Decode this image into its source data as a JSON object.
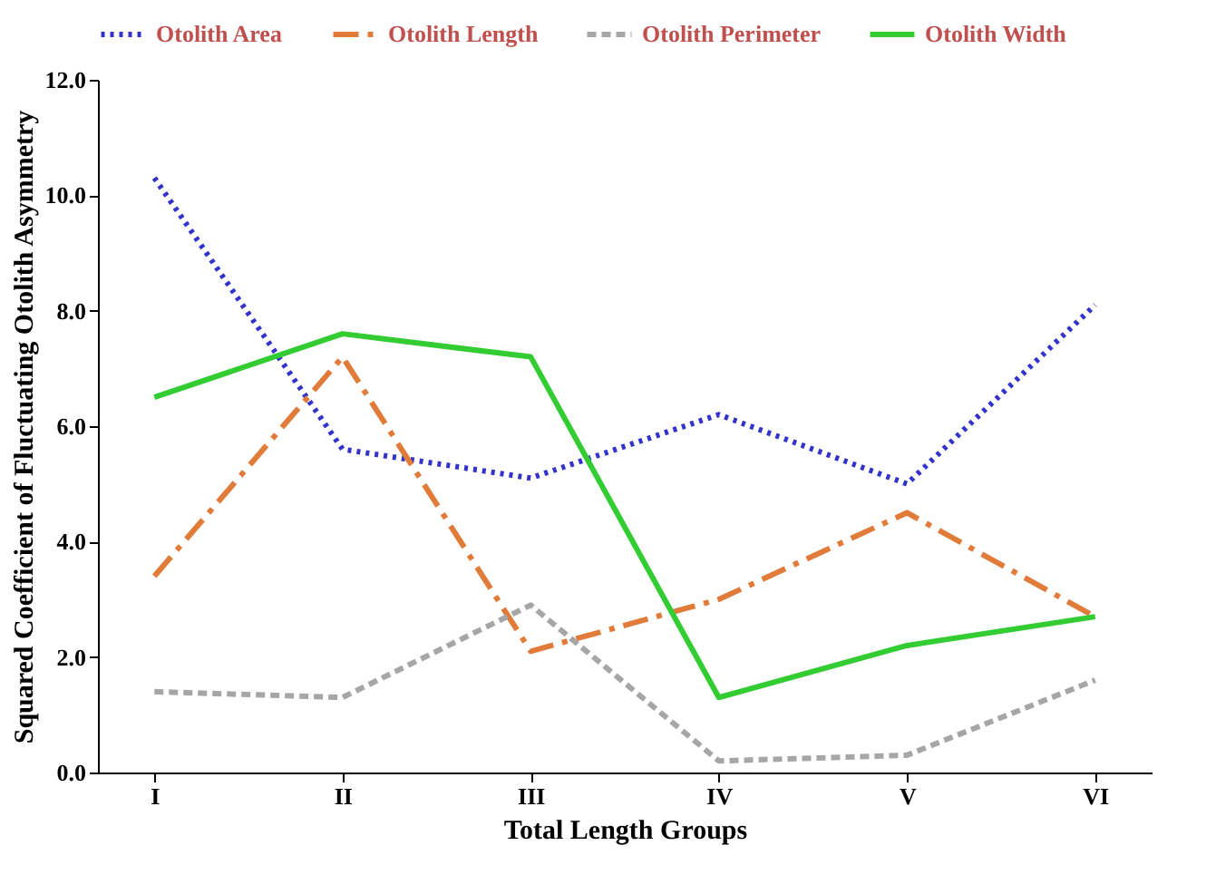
{
  "chart_data": {
    "type": "line",
    "xlabel": "Total Length Groups",
    "ylabel": "Squared Coefficient of Fluctuating Otolith Asymmetry",
    "categories": [
      "I",
      "II",
      "III",
      "IV",
      "V",
      "VI"
    ],
    "series": [
      {
        "name": "Otolith Area",
        "color": "#3333cc",
        "line_style": "dotted",
        "values": [
          10.3,
          5.6,
          5.1,
          6.2,
          5.0,
          8.1
        ]
      },
      {
        "name": "Otolith Length",
        "color": "#e07b39",
        "line_style": "dashdot",
        "values": [
          3.4,
          7.2,
          2.1,
          3.0,
          4.5,
          2.7
        ]
      },
      {
        "name": "Otolith Perimeter",
        "color": "#a6a6a6",
        "line_style": "dashed",
        "values": [
          1.4,
          1.3,
          2.9,
          0.2,
          0.3,
          1.6
        ]
      },
      {
        "name": "Otolith Width",
        "color": "#33cc33",
        "line_style": "solid",
        "values": [
          6.5,
          7.6,
          7.2,
          1.3,
          2.2,
          2.7
        ]
      }
    ],
    "ylim": [
      0,
      12
    ],
    "yticks": [
      {
        "value": 0,
        "label": "0.0"
      },
      {
        "value": 2,
        "label": "2.0"
      },
      {
        "value": 4,
        "label": "4.0"
      },
      {
        "value": 6,
        "label": "6.0"
      },
      {
        "value": 8,
        "label": "8.0"
      },
      {
        "value": 10,
        "label": "10.0"
      },
      {
        "value": 12,
        "label": "12.0"
      }
    ],
    "grid": false,
    "legend": "top",
    "marker": "none"
  }
}
